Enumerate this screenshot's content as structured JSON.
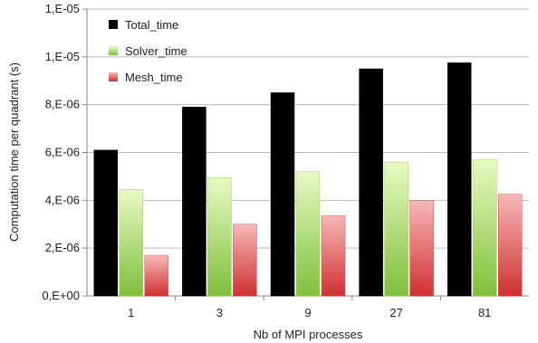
{
  "chart_data": {
    "type": "bar",
    "title": "",
    "xlabel": "Nb of MPI processes",
    "ylabel": "Computation time per quadrant (s)",
    "categories": [
      "1",
      "3",
      "9",
      "27",
      "81"
    ],
    "ylim": [
      0,
      1.2e-05
    ],
    "y_ticks": [
      0,
      2e-06,
      4e-06,
      6e-06,
      8e-06,
      1e-05,
      1.2e-05
    ],
    "y_tick_labels": [
      "0,E+00",
      "2,E-06",
      "4,E-06",
      "6,E-06",
      "8,E-06",
      "1,E-05",
      "1,E-05"
    ],
    "grid": "horizontal",
    "legend_position": "top-left",
    "series": [
      {
        "name": "Total_time",
        "values": [
          6.1e-06,
          7.9e-06,
          8.5e-06,
          9.5e-06,
          9.75e-06
        ],
        "color": "#000000"
      },
      {
        "name": "Solver_time",
        "values": [
          4.45e-06,
          4.95e-06,
          5.2e-06,
          5.6e-06,
          5.7e-06
        ],
        "color": "#b6e86c"
      },
      {
        "name": "Mesh_time",
        "values": [
          1.7e-06,
          3e-06,
          3.35e-06,
          4e-06,
          4.25e-06
        ],
        "color": "#e85858"
      }
    ]
  }
}
